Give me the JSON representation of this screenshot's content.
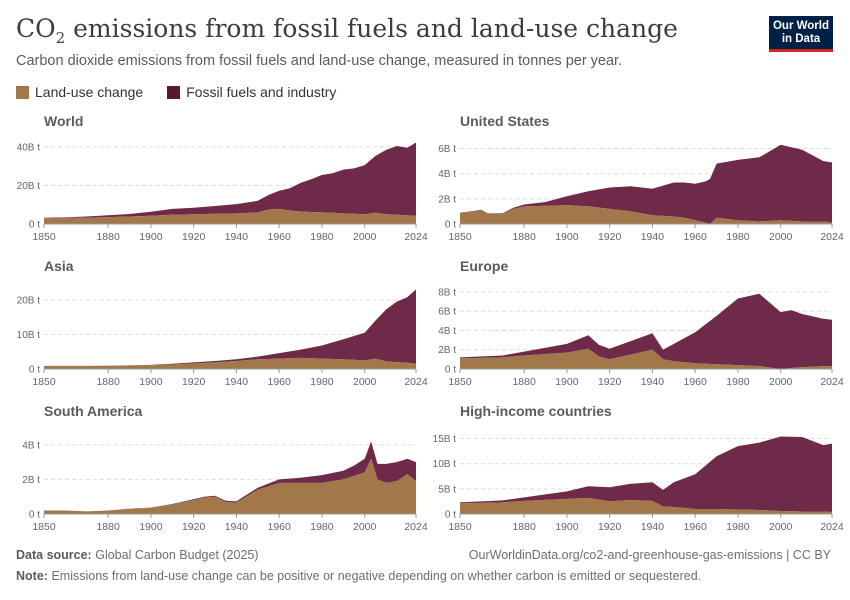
{
  "header": {
    "title_main": "CO",
    "title_sub": "2",
    "title_rest": " emissions from fossil fuels and land-use change",
    "subtitle": "Carbon dioxide emissions from fossil fuels and land-use change, measured in tonnes per year.",
    "logo_line1": "Our World",
    "logo_line2": "in Data"
  },
  "legend": [
    {
      "label": "Land-use change",
      "color": "#a2784b"
    },
    {
      "label": "Fossil fuels and industry",
      "color": "#5b1633"
    }
  ],
  "footer": {
    "source_label": "Data source:",
    "source_value": "Global Carbon Budget (2025)",
    "url": "OurWorldinData.org/co2-and-greenhouse-gas-emissions | CC BY",
    "note_label": "Note:",
    "note_value": "Emissions from land-use change can be positive or negative depending on whether carbon is emitted or sequestered."
  },
  "colors": {
    "land": "#a2784b",
    "fossil": "#6e2a48",
    "grid": "#dcdcdc",
    "axis": "#666666"
  },
  "chart_data": [
    {
      "type": "area",
      "title": "World",
      "x_ticks": [
        1850,
        1880,
        1900,
        1920,
        1940,
        1960,
        1980,
        2000,
        2024
      ],
      "x_range": [
        1850,
        2024
      ],
      "y_ticks": [
        0,
        20,
        40
      ],
      "y_tick_labels": [
        "0 t",
        "20B t",
        "40B t"
      ],
      "ylim": [
        0,
        43
      ],
      "series": [
        {
          "name": "Land-use change",
          "x": [
            1850,
            1860,
            1870,
            1880,
            1890,
            1900,
            1910,
            1920,
            1930,
            1940,
            1950,
            1955,
            1960,
            1965,
            1970,
            1975,
            1980,
            1985,
            1990,
            1995,
            2000,
            2005,
            2010,
            2015,
            2020,
            2024
          ],
          "values": [
            3.0,
            3.2,
            3.3,
            3.6,
            3.9,
            4.3,
            4.8,
            5.0,
            5.3,
            5.5,
            6.0,
            7.5,
            7.8,
            7.0,
            6.5,
            6.2,
            6.0,
            5.8,
            5.5,
            5.3,
            5.0,
            5.8,
            5.0,
            4.8,
            4.5,
            4.2
          ]
        },
        {
          "name": "Fossil fuels and industry",
          "x": [
            1850,
            1860,
            1870,
            1880,
            1890,
            1900,
            1910,
            1920,
            1930,
            1940,
            1950,
            1955,
            1960,
            1965,
            1970,
            1975,
            1980,
            1985,
            1990,
            1995,
            2000,
            2005,
            2010,
            2015,
            2020,
            2024
          ],
          "values": [
            0.2,
            0.3,
            0.6,
            0.9,
            1.3,
            2.0,
            3.0,
            3.4,
            4.0,
            4.8,
            6.0,
            7.5,
            9.4,
            11.5,
            14.8,
            17.0,
            19.4,
            20.5,
            22.7,
            23.5,
            25.5,
            29.5,
            33.4,
            35.6,
            35.0,
            38.0
          ]
        }
      ]
    },
    {
      "type": "area",
      "title": "United States",
      "x_ticks": [
        1850,
        1880,
        1900,
        1920,
        1940,
        1960,
        1980,
        2000,
        2024
      ],
      "x_range": [
        1850,
        2024
      ],
      "y_ticks": [
        0,
        2,
        4,
        6
      ],
      "y_tick_labels": [
        "0 t",
        "2B t",
        "4B t",
        "6B t"
      ],
      "ylim": [
        0,
        6.6
      ],
      "series": [
        {
          "name": "Land-use change",
          "x": [
            1850,
            1855,
            1860,
            1863,
            1870,
            1875,
            1880,
            1890,
            1900,
            1910,
            1920,
            1930,
            1940,
            1950,
            1955,
            1960,
            1965,
            1967,
            1970,
            1980,
            1990,
            2000,
            2010,
            2020,
            2024
          ],
          "values": [
            0.9,
            1.0,
            1.1,
            0.8,
            0.8,
            1.2,
            1.4,
            1.45,
            1.5,
            1.4,
            1.2,
            1.0,
            0.7,
            0.6,
            0.5,
            0.3,
            0.1,
            0.0,
            0.5,
            0.3,
            0.2,
            0.3,
            0.2,
            0.2,
            0.1
          ]
        },
        {
          "name": "Fossil fuels and industry",
          "x": [
            1850,
            1855,
            1860,
            1863,
            1870,
            1875,
            1880,
            1890,
            1900,
            1910,
            1920,
            1930,
            1940,
            1950,
            1955,
            1960,
            1965,
            1967,
            1970,
            1980,
            1990,
            2000,
            2010,
            2020,
            2024
          ],
          "values": [
            0.01,
            0.02,
            0.03,
            0.04,
            0.05,
            0.1,
            0.15,
            0.3,
            0.7,
            1.2,
            1.7,
            2.0,
            2.1,
            2.7,
            2.8,
            2.9,
            3.3,
            3.6,
            4.3,
            4.8,
            5.1,
            6.0,
            5.7,
            4.8,
            4.8
          ]
        }
      ]
    },
    {
      "type": "area",
      "title": "Asia",
      "x_ticks": [
        1850,
        1880,
        1900,
        1920,
        1940,
        1960,
        1980,
        2000,
        2024
      ],
      "x_range": [
        1850,
        2024
      ],
      "y_ticks": [
        0,
        10,
        20
      ],
      "y_tick_labels": [
        "0 t",
        "10B t",
        "20B t"
      ],
      "ylim": [
        0,
        24
      ],
      "series": [
        {
          "name": "Land-use change",
          "x": [
            1850,
            1870,
            1890,
            1900,
            1910,
            1920,
            1930,
            1940,
            1950,
            1960,
            1970,
            1980,
            1990,
            2000,
            2005,
            2010,
            2015,
            2020,
            2024
          ],
          "values": [
            0.9,
            0.9,
            1.0,
            1.1,
            1.3,
            1.6,
            1.9,
            2.3,
            2.8,
            3.0,
            3.2,
            3.0,
            2.8,
            2.5,
            3.0,
            2.2,
            2.0,
            1.8,
            1.5
          ]
        },
        {
          "name": "Fossil fuels and industry",
          "x": [
            1850,
            1870,
            1890,
            1900,
            1910,
            1920,
            1930,
            1940,
            1950,
            1960,
            1970,
            1980,
            1990,
            2000,
            2005,
            2010,
            2015,
            2020,
            2024
          ],
          "values": [
            0.0,
            0.0,
            0.05,
            0.1,
            0.2,
            0.3,
            0.4,
            0.5,
            0.8,
            1.6,
            2.4,
            3.8,
            5.8,
            8.0,
            11.0,
            15.0,
            17.5,
            19.0,
            21.5
          ]
        }
      ]
    },
    {
      "type": "area",
      "title": "Europe",
      "x_ticks": [
        1850,
        1880,
        1900,
        1920,
        1940,
        1960,
        1980,
        2000,
        2024
      ],
      "x_range": [
        1850,
        2024
      ],
      "y_ticks": [
        0,
        2,
        4,
        6,
        8
      ],
      "y_tick_labels": [
        "0 t",
        "2B t",
        "4B t",
        "6B t",
        "8B t"
      ],
      "ylim": [
        0,
        8.6
      ],
      "series": [
        {
          "name": "Land-use change",
          "x": [
            1850,
            1870,
            1880,
            1900,
            1910,
            1915,
            1920,
            1930,
            1940,
            1945,
            1950,
            1960,
            1970,
            1980,
            1990,
            2000,
            2005,
            2010,
            2020,
            2024
          ],
          "values": [
            1.1,
            1.2,
            1.4,
            1.7,
            2.1,
            1.3,
            1.0,
            1.5,
            2.0,
            1.0,
            0.8,
            0.6,
            0.5,
            0.4,
            0.3,
            0.0,
            0.1,
            0.2,
            0.3,
            0.3
          ]
        },
        {
          "name": "Fossil fuels and industry",
          "x": [
            1850,
            1870,
            1880,
            1900,
            1910,
            1915,
            1920,
            1930,
            1940,
            1945,
            1950,
            1960,
            1970,
            1980,
            1990,
            2000,
            2005,
            2010,
            2020,
            2024
          ],
          "values": [
            0.1,
            0.2,
            0.4,
            0.9,
            1.4,
            1.2,
            1.1,
            1.4,
            1.7,
            1.0,
            1.8,
            3.2,
            5.0,
            6.9,
            7.5,
            5.9,
            6.0,
            5.5,
            4.9,
            4.8
          ]
        }
      ]
    },
    {
      "type": "area",
      "title": "South America",
      "x_ticks": [
        1850,
        1880,
        1900,
        1920,
        1940,
        1960,
        1980,
        2000,
        2024
      ],
      "x_range": [
        1850,
        2024
      ],
      "y_ticks": [
        0,
        2,
        4
      ],
      "y_tick_labels": [
        "0 t",
        "2B t",
        "4B t"
      ],
      "ylim": [
        0,
        4.8
      ],
      "series": [
        {
          "name": "Land-use change",
          "x": [
            1850,
            1860,
            1870,
            1880,
            1890,
            1900,
            1910,
            1920,
            1925,
            1930,
            1935,
            1940,
            1950,
            1960,
            1970,
            1980,
            1990,
            1995,
            2000,
            2003,
            2006,
            2010,
            2015,
            2020,
            2024
          ],
          "values": [
            0.2,
            0.2,
            0.15,
            0.2,
            0.3,
            0.35,
            0.55,
            0.8,
            0.95,
            1.0,
            0.7,
            0.65,
            1.4,
            1.8,
            1.8,
            1.8,
            2.0,
            2.2,
            2.4,
            3.2,
            2.0,
            1.8,
            1.9,
            2.3,
            1.9
          ]
        },
        {
          "name": "Fossil fuels and industry",
          "x": [
            1850,
            1860,
            1870,
            1880,
            1890,
            1900,
            1910,
            1920,
            1925,
            1930,
            1935,
            1940,
            1950,
            1960,
            1970,
            1980,
            1990,
            1995,
            2000,
            2003,
            2006,
            2010,
            2015,
            2020,
            2024
          ],
          "values": [
            0.0,
            0.0,
            0.0,
            0.0,
            0.01,
            0.02,
            0.03,
            0.05,
            0.05,
            0.06,
            0.07,
            0.08,
            0.12,
            0.2,
            0.3,
            0.45,
            0.5,
            0.6,
            0.8,
            1.0,
            0.9,
            1.1,
            1.1,
            0.9,
            1.1
          ]
        }
      ]
    },
    {
      "type": "area",
      "title": "High-income countries",
      "x_ticks": [
        1850,
        1880,
        1900,
        1920,
        1940,
        1960,
        1980,
        2000,
        2024
      ],
      "x_range": [
        1850,
        2024
      ],
      "y_ticks": [
        0,
        5,
        10,
        15
      ],
      "y_tick_labels": [
        "0 t",
        "5B t",
        "10B t",
        "15B t"
      ],
      "ylim": [
        0,
        16.5
      ],
      "series": [
        {
          "name": "Land-use change",
          "x": [
            1850,
            1870,
            1880,
            1900,
            1910,
            1920,
            1930,
            1940,
            1945,
            1950,
            1960,
            1970,
            1980,
            1990,
            2000,
            2010,
            2020,
            2024
          ],
          "values": [
            2.1,
            2.3,
            2.6,
            3.0,
            3.2,
            2.5,
            2.8,
            2.6,
            1.5,
            1.4,
            1.0,
            1.0,
            0.9,
            0.8,
            0.6,
            0.5,
            0.5,
            0.4
          ]
        },
        {
          "name": "Fossil fuels and industry",
          "x": [
            1850,
            1870,
            1880,
            1900,
            1910,
            1920,
            1930,
            1940,
            1945,
            1950,
            1960,
            1970,
            1980,
            1990,
            2000,
            2010,
            2020,
            2024
          ],
          "values": [
            0.2,
            0.4,
            0.7,
            1.5,
            2.3,
            2.8,
            3.2,
            3.7,
            3.3,
            4.9,
            6.9,
            10.5,
            12.6,
            13.4,
            14.8,
            14.8,
            13.2,
            13.6
          ]
        }
      ]
    }
  ]
}
